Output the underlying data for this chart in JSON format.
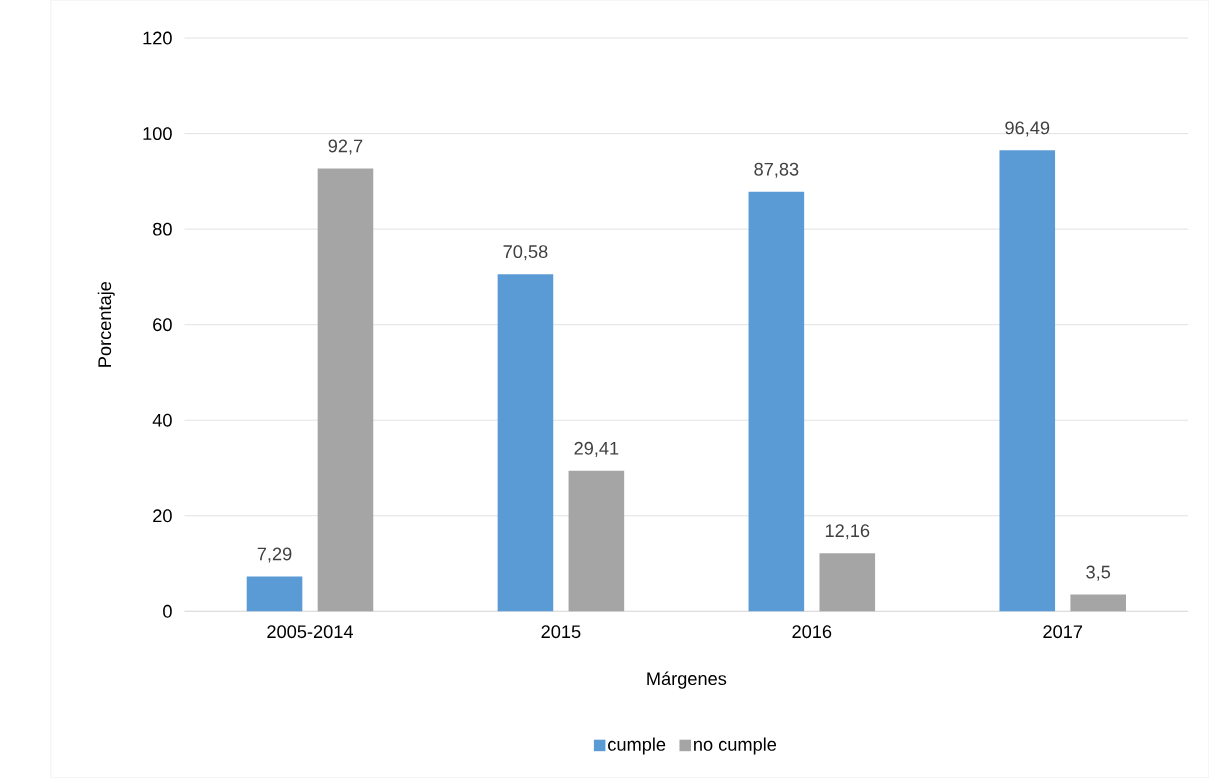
{
  "chart_data": {
    "type": "bar",
    "xlabel": "Márgenes",
    "ylabel": "Porcentaje",
    "categories": [
      "2005-2014",
      "2015",
      "2016",
      "2017"
    ],
    "series": [
      {
        "name": "cumple",
        "color": "#5b9bd5",
        "values": [
          7.29,
          70.58,
          87.83,
          96.49
        ],
        "value_labels": [
          "7,29",
          "70,58",
          "87,83",
          "96,49"
        ]
      },
      {
        "name": "no cumple",
        "color": "#a5a5a5",
        "values": [
          92.7,
          29.41,
          12.16,
          3.5
        ],
        "value_labels": [
          "92,7",
          "29,41",
          "12,16",
          "3,5"
        ]
      }
    ],
    "ylim": [
      0,
      120
    ],
    "yticks": [
      0,
      20,
      40,
      60,
      80,
      100,
      120
    ],
    "grid": "y",
    "legend": "bottom"
  }
}
